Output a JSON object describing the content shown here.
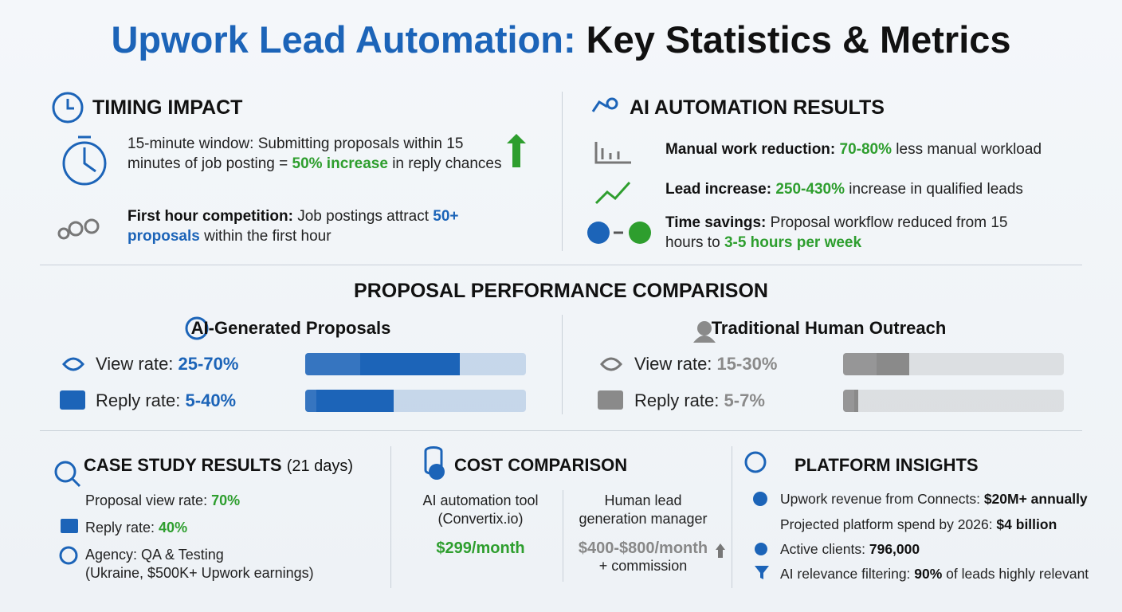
{
  "title": [
    "Upwork Lead Automation:",
    "Key Statistics & Metrics"
  ],
  "timing": {
    "heading": "TIMING IMPACT",
    "items": [
      [
        {
          "t": "15-minute window:",
          "s": ""
        },
        {
          "t": " Submitting proposals within 15 minutes of job posting = ",
          "s": ""
        },
        {
          "t": "50% increase",
          "s": "g"
        },
        {
          "t": " in reply chances",
          "s": ""
        }
      ],
      [
        {
          "t": "First hour competition:",
          "s": "b"
        },
        {
          "t": " Job postings attract ",
          "s": ""
        },
        {
          "t": "50+ proposals",
          "s": "bl"
        },
        {
          "t": " within the first hour",
          "s": ""
        }
      ]
    ]
  },
  "ai": {
    "heading": "AI AUTOMATION RESULTS",
    "items": [
      [
        {
          "t": "Manual work reduction:",
          "s": "b"
        },
        {
          "t": " ",
          "s": ""
        },
        {
          "t": "70-80%",
          "s": "g"
        },
        {
          "t": " less manual workload",
          "s": ""
        }
      ],
      [
        {
          "t": "Lead increase:",
          "s": "b"
        },
        {
          "t": " ",
          "s": ""
        },
        {
          "t": "250-430%",
          "s": "g"
        },
        {
          "t": " increase in qualified leads",
          "s": ""
        }
      ],
      [
        {
          "t": "Time savings:",
          "s": "b"
        },
        {
          "t": " Proposal workflow reduced from 15 hours to ",
          "s": ""
        },
        {
          "t": "3-5 hours per week",
          "s": "g"
        }
      ]
    ]
  },
  "comparison": {
    "heading": "PROPOSAL PERFORMANCE COMPARISON",
    "groups": [
      {
        "name": "AI-Generated Proposals",
        "color": "#1c64b8",
        "rates": [
          {
            "label": "View rate:",
            "value_label": "25-70%",
            "values": [
              25,
              70
            ]
          },
          {
            "label": "Reply rate:",
            "value_label": "5-40%",
            "values": [
              5,
              40
            ]
          }
        ]
      },
      {
        "name": "Traditional Human Outreach",
        "color": "#8a8a8a",
        "rates": [
          {
            "label": "View rate:",
            "value_label": "15-30%",
            "values": [
              15,
              30
            ]
          },
          {
            "label": "Reply rate:",
            "value_label": "5-7%",
            "values": [
              5,
              7
            ]
          }
        ]
      }
    ]
  },
  "case": {
    "heading": "CASE STUDY RESULTS",
    "note": "(21 days)",
    "items": [
      [
        {
          "t": "Proposal view rate: ",
          "s": ""
        },
        {
          "t": "70%",
          "s": "g"
        }
      ],
      [
        {
          "t": "Reply rate: ",
          "s": ""
        },
        {
          "t": "40%",
          "s": "g"
        }
      ],
      [
        {
          "t": "Agency: QA & Testing",
          "s": ""
        },
        {
          "t": "(Ukraine, $500K+ Upwork earnings)",
          "s": "br"
        }
      ]
    ]
  },
  "cost": {
    "heading": "COST COMPARISON",
    "columns": [
      {
        "label": "AI automation tool (Convertix.io)",
        "price": "$299/month"
      },
      {
        "label": "Human lead generation manager",
        "price": "$400-$800/month",
        "note": "+ commission"
      }
    ]
  },
  "platform": {
    "heading": "PLATFORM INSIGHTS",
    "items": [
      [
        {
          "t": "Upwork revenue from Connects: ",
          "s": ""
        },
        {
          "t": "$20M+ annually",
          "s": "b"
        }
      ],
      [
        {
          "t": "Projected platform spend by 2026: ",
          "s": ""
        },
        {
          "t": "$4 billion",
          "s": "b"
        }
      ],
      [
        {
          "t": "Active clients: ",
          "s": ""
        },
        {
          "t": "796,000",
          "s": "b"
        }
      ],
      [
        {
          "t": "AI relevance filtering: ",
          "s": ""
        },
        {
          "t": "90%",
          "s": "b"
        },
        {
          "t": " of leads highly relevant",
          "s": ""
        }
      ]
    ]
  }
}
